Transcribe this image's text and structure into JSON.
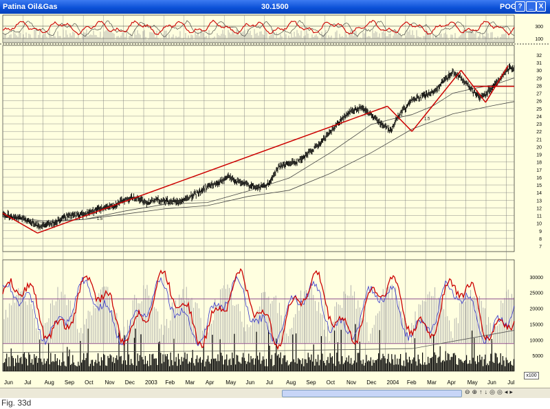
{
  "window": {
    "title": "Patina Oil&Gas",
    "price": "30.1500",
    "ticker": "POG",
    "buttons": {
      "help": "?",
      "minimize": "_",
      "maximize": "□",
      "close": "X"
    }
  },
  "caption": "Fig. 33d",
  "scale_label": "x100",
  "nav_icons": [
    "zoom-out-icon",
    "zoom-in-icon",
    "arrow-up-icon",
    "arrow-down-icon",
    "target-icon",
    "target-icon",
    "arrow-left-icon",
    "arrow-right-icon"
  ],
  "colors": {
    "price": "#000000",
    "trendline": "#cc0000",
    "ma": "#444444",
    "rsi_red": "#cc0000",
    "blue": "#3333cc",
    "grid": "#808080",
    "bg": "#ffffe0"
  },
  "chart_data": [
    {
      "type": "line",
      "panel": "indicator-top",
      "y_ticks": [
        300,
        100
      ]
    },
    {
      "type": "line",
      "panel": "price",
      "ylim": [
        7,
        32
      ],
      "y_ticks": [
        7,
        8,
        9,
        10,
        11,
        12,
        13,
        14,
        15,
        16,
        17,
        18,
        19,
        20,
        21,
        22,
        23,
        24,
        25,
        26,
        27,
        28,
        29,
        30,
        31,
        32
      ],
      "x_ticks": [
        "Jun",
        "Jul",
        "Aug",
        "Sep",
        "Oct",
        "Nov",
        "Dec",
        "2003",
        "Feb",
        "Mar",
        "Apr",
        "May",
        "Jun",
        "Jul",
        "Aug",
        "Sep",
        "Oct",
        "Nov",
        "Dec",
        "2004",
        "Feb",
        "Mar",
        "Apr",
        "May",
        "Jun",
        "Jul"
      ],
      "series": [
        {
          "x": [
            0,
            1,
            1.8,
            2.5,
            3,
            3.5,
            4,
            4.5,
            5,
            5.5,
            6,
            6.5,
            7,
            7.5,
            8,
            8.5,
            9,
            9.5,
            10,
            10.5,
            11,
            11.5,
            12,
            12.5,
            13,
            13.5,
            14,
            14.5,
            15,
            15.5,
            16,
            16.5,
            17,
            17.5,
            18,
            18.5,
            19,
            19.3,
            19.8,
            20,
            20.5,
            21,
            21.5,
            22,
            22.5,
            23,
            23.4,
            23.8,
            24.3,
            24.8,
            25
          ],
          "values": [
            11.2,
            10.6,
            9.6,
            10.0,
            10.9,
            11.0,
            11.2,
            11.7,
            12.0,
            12.4,
            13.1,
            13.4,
            12.7,
            13.0,
            13.0,
            12.7,
            13.2,
            13.9,
            14.8,
            15.1,
            16.1,
            15.4,
            15.0,
            14.6,
            15.1,
            17.4,
            17.8,
            18.2,
            19.3,
            20.3,
            22.0,
            23.4,
            24.6,
            25.0,
            24.2,
            23.0,
            22.1,
            24.0,
            25.5,
            26.1,
            26.6,
            27.0,
            28.4,
            29.8,
            28.7,
            27.2,
            26.4,
            27.5,
            28.8,
            30.5,
            30.15
          ]
        },
        {
          "x": [
            0,
            2,
            4,
            6,
            8,
            10,
            12,
            14,
            16,
            18,
            19,
            20,
            21,
            22,
            23,
            24,
            25
          ],
          "values": [
            10.8,
            10.1,
            10.5,
            11.6,
            12.5,
            12.7,
            14.2,
            15.9,
            19.2,
            22.9,
            23.6,
            24.2,
            25.3,
            27.0,
            27.6,
            28.1,
            29.0
          ]
        },
        {
          "x": [
            0,
            2,
            4,
            6,
            8,
            10,
            12,
            14,
            16,
            18,
            20,
            22,
            24,
            25
          ],
          "values": [
            10.9,
            10.3,
            10.5,
            11.2,
            11.9,
            12.3,
            13.5,
            14.3,
            16.5,
            19.2,
            22.3,
            24.3,
            25.4,
            25.9
          ]
        }
      ],
      "trendlines": [
        {
          "x": [
            0,
            1.7
          ],
          "values": [
            11.3,
            8.7
          ]
        },
        {
          "x": [
            1.7,
            18.8
          ],
          "values": [
            8.7,
            25.3
          ]
        },
        {
          "x": [
            18.8,
            20.0
          ],
          "values": [
            25.3,
            22.0
          ]
        },
        {
          "x": [
            20.0,
            22.4
          ],
          "values": [
            22.0,
            30.0
          ]
        },
        {
          "x": [
            22.4,
            23.6
          ],
          "values": [
            30.0,
            25.8
          ]
        },
        {
          "x": [
            23.6,
            24.7
          ],
          "values": [
            25.8,
            30.6
          ]
        },
        {
          "x": [
            23.0,
            25
          ],
          "values": [
            27.9,
            27.9
          ]
        }
      ],
      "annotations": [
        "1.5",
        "1.5"
      ]
    },
    {
      "type": "bar",
      "panel": "volume",
      "ylim": [
        0,
        35000
      ],
      "y_ticks": [
        30000,
        25000,
        20000,
        15000,
        10000,
        5000
      ],
      "hlines": [
        23000,
        8800
      ]
    }
  ]
}
